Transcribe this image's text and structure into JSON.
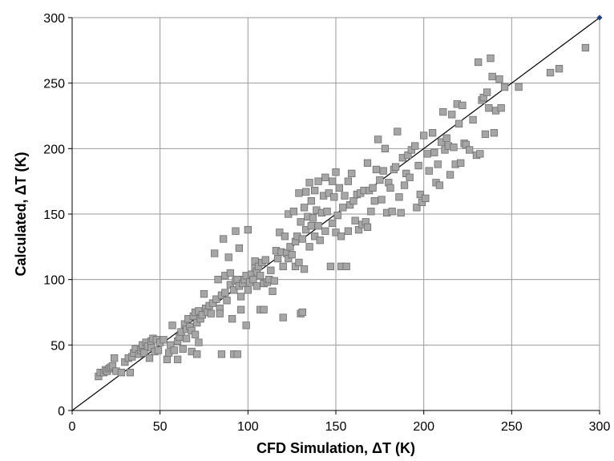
{
  "chart_data": {
    "type": "scatter",
    "title": "",
    "xlabel": "CFD Simulation, ΔT (K)",
    "ylabel": "Calculated, ΔT (K)",
    "xlim": [
      0,
      300
    ],
    "ylim": [
      0,
      300
    ],
    "xticks": [
      0,
      50,
      100,
      150,
      200,
      250,
      300
    ],
    "yticks": [
      0,
      50,
      100,
      150,
      200,
      250,
      300
    ],
    "grid": true,
    "legend": "none",
    "colors": {
      "point_fill": "#a6a6a6",
      "point_stroke": "#6e6e6e",
      "grid": "#9a9a9a",
      "parity": "#000000",
      "endpoint": "#1f3f7f"
    },
    "reference_line": {
      "x": [
        0,
        300
      ],
      "y": [
        0,
        300
      ]
    },
    "series": [
      {
        "points": [
          [
            15,
            26
          ],
          [
            16,
            29
          ],
          [
            18,
            29
          ],
          [
            19,
            31
          ],
          [
            20,
            30
          ],
          [
            21,
            32
          ],
          [
            22,
            33
          ],
          [
            23,
            34
          ],
          [
            24,
            40
          ],
          [
            25,
            30
          ],
          [
            28,
            29
          ],
          [
            30,
            37
          ],
          [
            32,
            40
          ],
          [
            33,
            29
          ],
          [
            34,
            41
          ],
          [
            35,
            44
          ],
          [
            36,
            47
          ],
          [
            38,
            43
          ],
          [
            39,
            46
          ],
          [
            40,
            48
          ],
          [
            40,
            50
          ],
          [
            41,
            44
          ],
          [
            42,
            52
          ],
          [
            43,
            49
          ],
          [
            44,
            40
          ],
          [
            45,
            48
          ],
          [
            45,
            53
          ],
          [
            46,
            55
          ],
          [
            47,
            45
          ],
          [
            48,
            54
          ],
          [
            49,
            46
          ],
          [
            50,
            52
          ],
          [
            52,
            54
          ],
          [
            54,
            39
          ],
          [
            55,
            44
          ],
          [
            56,
            50
          ],
          [
            57,
            65
          ],
          [
            58,
            46
          ],
          [
            60,
            53
          ],
          [
            60,
            39
          ],
          [
            61,
            56
          ],
          [
            62,
            60
          ],
          [
            63,
            47
          ],
          [
            64,
            66
          ],
          [
            65,
            62
          ],
          [
            65,
            55
          ],
          [
            66,
            70
          ],
          [
            67,
            64
          ],
          [
            68,
            61
          ],
          [
            68,
            45
          ],
          [
            69,
            72
          ],
          [
            70,
            58
          ],
          [
            70,
            75
          ],
          [
            71,
            67
          ],
          [
            71,
            43
          ],
          [
            72,
            76
          ],
          [
            72,
            52
          ],
          [
            73,
            70
          ],
          [
            74,
            73
          ],
          [
            75,
            89
          ],
          [
            76,
            78
          ],
          [
            77,
            75
          ],
          [
            78,
            80
          ],
          [
            79,
            74
          ],
          [
            80,
            82
          ],
          [
            81,
            120
          ],
          [
            82,
            85
          ],
          [
            83,
            100
          ],
          [
            84,
            78
          ],
          [
            84,
            74
          ],
          [
            85,
            43
          ],
          [
            85,
            88
          ],
          [
            86,
            131
          ],
          [
            87,
            90
          ],
          [
            87,
            103
          ],
          [
            88,
            84
          ],
          [
            89,
            117
          ],
          [
            90,
            96
          ],
          [
            90,
            105
          ],
          [
            91,
            70
          ],
          [
            92,
            92
          ],
          [
            92,
            43
          ],
          [
            93,
            137
          ],
          [
            93,
            99
          ],
          [
            94,
            100
          ],
          [
            94,
            43
          ],
          [
            95,
            124
          ],
          [
            95,
            95
          ],
          [
            96,
            77
          ],
          [
            96,
            87
          ],
          [
            97,
            97
          ],
          [
            98,
            100
          ],
          [
            99,
            103
          ],
          [
            99,
            65
          ],
          [
            100,
            92
          ],
          [
            100,
            138
          ],
          [
            101,
            98
          ],
          [
            102,
            104
          ],
          [
            103,
            100
          ],
          [
            104,
            109
          ],
          [
            104,
            114
          ],
          [
            105,
            106
          ],
          [
            105,
            95
          ],
          [
            106,
            110
          ],
          [
            107,
            103
          ],
          [
            107,
            77
          ],
          [
            108,
            113
          ],
          [
            109,
            97
          ],
          [
            109,
            77
          ],
          [
            110,
            115
          ],
          [
            111,
            98
          ],
          [
            112,
            100
          ],
          [
            113,
            107
          ],
          [
            114,
            91
          ],
          [
            115,
            99
          ],
          [
            116,
            122
          ],
          [
            117,
            116
          ],
          [
            118,
            136
          ],
          [
            119,
            121
          ],
          [
            120,
            110
          ],
          [
            120,
            71
          ],
          [
            121,
            133
          ],
          [
            122,
            120
          ],
          [
            123,
            116
          ],
          [
            123,
            150
          ],
          [
            124,
            125
          ],
          [
            125,
            119
          ],
          [
            126,
            152
          ],
          [
            127,
            129
          ],
          [
            127,
            110
          ],
          [
            128,
            133
          ],
          [
            129,
            166
          ],
          [
            129,
            113
          ],
          [
            130,
            74
          ],
          [
            130,
            144
          ],
          [
            131,
            131
          ],
          [
            131,
            75
          ],
          [
            132,
            155
          ],
          [
            132,
            108
          ],
          [
            133,
            138
          ],
          [
            133,
            167
          ],
          [
            134,
            148
          ],
          [
            135,
            174
          ],
          [
            135,
            125
          ],
          [
            136,
            141
          ],
          [
            136,
            160
          ],
          [
            137,
            147
          ],
          [
            138,
            133
          ],
          [
            138,
            168
          ],
          [
            139,
            153
          ],
          [
            140,
            175
          ],
          [
            140,
            141
          ],
          [
            141,
            130
          ],
          [
            142,
            151
          ],
          [
            143,
            164
          ],
          [
            144,
            178
          ],
          [
            144,
            137
          ],
          [
            145,
            152
          ],
          [
            146,
            166
          ],
          [
            147,
            110
          ],
          [
            148,
            143
          ],
          [
            148,
            175
          ],
          [
            149,
            163
          ],
          [
            150,
            182
          ],
          [
            150,
            136
          ],
          [
            151,
            149
          ],
          [
            152,
            170
          ],
          [
            153,
            133
          ],
          [
            153,
            110
          ],
          [
            154,
            155
          ],
          [
            155,
            164
          ],
          [
            156,
            110
          ],
          [
            157,
            175
          ],
          [
            157,
            137
          ],
          [
            158,
            157
          ],
          [
            159,
            181
          ],
          [
            160,
            160
          ],
          [
            161,
            145
          ],
          [
            162,
            165
          ],
          [
            163,
            138
          ],
          [
            164,
            166
          ],
          [
            165,
            142
          ],
          [
            166,
            168
          ],
          [
            167,
            144
          ],
          [
            168,
            189
          ],
          [
            168,
            140
          ],
          [
            169,
            168
          ],
          [
            170,
            152
          ],
          [
            171,
            170
          ],
          [
            172,
            160
          ],
          [
            173,
            184
          ],
          [
            174,
            207
          ],
          [
            175,
            176
          ],
          [
            176,
            161
          ],
          [
            177,
            183
          ],
          [
            178,
            200
          ],
          [
            179,
            151
          ],
          [
            180,
            174
          ],
          [
            181,
            170
          ],
          [
            182,
            152
          ],
          [
            183,
            184
          ],
          [
            184,
            186
          ],
          [
            185,
            213
          ],
          [
            186,
            163
          ],
          [
            187,
            151
          ],
          [
            188,
            193
          ],
          [
            189,
            172
          ],
          [
            190,
            181
          ],
          [
            191,
            195
          ],
          [
            192,
            178
          ],
          [
            193,
            199
          ],
          [
            195,
            202
          ],
          [
            196,
            155
          ],
          [
            197,
            187
          ],
          [
            198,
            165
          ],
          [
            199,
            159
          ],
          [
            200,
            210
          ],
          [
            201,
            162
          ],
          [
            202,
            196
          ],
          [
            203,
            183
          ],
          [
            205,
            212
          ],
          [
            206,
            197
          ],
          [
            207,
            174
          ],
          [
            208,
            188
          ],
          [
            209,
            172
          ],
          [
            210,
            205
          ],
          [
            211,
            228
          ],
          [
            212,
            199
          ],
          [
            213,
            208
          ],
          [
            214,
            202
          ],
          [
            215,
            180
          ],
          [
            216,
            226
          ],
          [
            217,
            201
          ],
          [
            218,
            188
          ],
          [
            219,
            234
          ],
          [
            220,
            219
          ],
          [
            221,
            189
          ],
          [
            222,
            233
          ],
          [
            223,
            204
          ],
          [
            224,
            203
          ],
          [
            226,
            199
          ],
          [
            228,
            222
          ],
          [
            230,
            195
          ],
          [
            231,
            266
          ],
          [
            232,
            196
          ],
          [
            233,
            237
          ],
          [
            234,
            239
          ],
          [
            235,
            211
          ],
          [
            236,
            243
          ],
          [
            237,
            231
          ],
          [
            238,
            269
          ],
          [
            239,
            255
          ],
          [
            240,
            212
          ],
          [
            241,
            229
          ],
          [
            243,
            253
          ],
          [
            244,
            231
          ],
          [
            246,
            247
          ],
          [
            254,
            247
          ],
          [
            272,
            258
          ],
          [
            277,
            261
          ],
          [
            292,
            277
          ]
        ]
      }
    ]
  }
}
